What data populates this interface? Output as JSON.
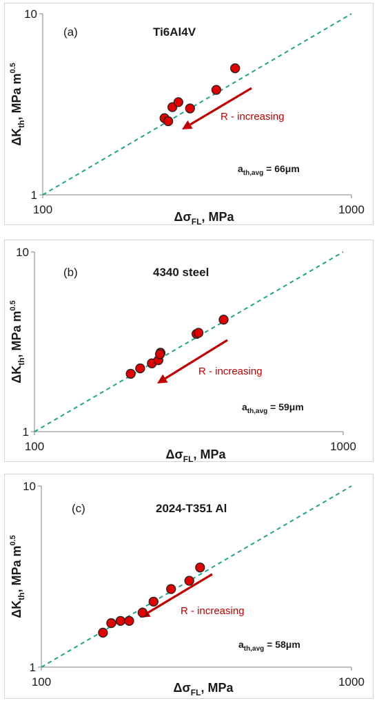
{
  "chart_data": [
    {
      "type": "scatter",
      "panel_label": "(a)",
      "title": "Ti6Al4V",
      "xlabel_main": "Δσ",
      "xlabel_sub": "FL",
      "xlabel_tail": ", MPa",
      "ylabel_main": "ΔK",
      "ylabel_sub": "th",
      "ylabel_tail": ", MPa m",
      "ylabel_sup": "0.5",
      "x_scale": "log",
      "y_scale": "log",
      "xlim": [
        100,
        1000
      ],
      "ylim": [
        1,
        10
      ],
      "x_ticks": [
        "100",
        "1000"
      ],
      "y_ticks": [
        "1",
        "10"
      ],
      "reference_line": "dashed 1:1 diagonal",
      "annotation": "R - increasing",
      "avg_main": "a",
      "avg_sub": "th,avg",
      "avg_tail": " = 66μm",
      "x": [
        248,
        255,
        263,
        275,
        300,
        365,
        420
      ],
      "y": [
        2.65,
        2.55,
        3.05,
        3.25,
        3.0,
        3.8,
        5.0
      ]
    },
    {
      "type": "scatter",
      "panel_label": "(b)",
      "title": "4340 steel",
      "xlabel_main": "Δσ",
      "xlabel_sub": "FL",
      "xlabel_tail": ", MPa",
      "ylabel_main": "ΔK",
      "ylabel_sub": "th",
      "ylabel_tail": ", MPa m",
      "ylabel_sup": "0.5",
      "x_scale": "log",
      "y_scale": "log",
      "xlim": [
        100,
        1000
      ],
      "ylim": [
        1,
        10
      ],
      "x_ticks": [
        "100",
        "1000"
      ],
      "y_ticks": [
        "1",
        "10"
      ],
      "reference_line": "dashed 1:1 diagonal",
      "annotation": "R - increasing",
      "avg_main": "a",
      "avg_sub": "th,avg",
      "avg_tail": " = 59μm",
      "x": [
        205,
        220,
        240,
        252,
        256,
        255,
        335,
        340,
        410
      ],
      "y": [
        2.1,
        2.25,
        2.4,
        2.5,
        2.75,
        2.7,
        3.5,
        3.55,
        4.2
      ]
    },
    {
      "type": "scatter",
      "panel_label": "(c)",
      "title": "2024-T351 Al",
      "xlabel_main": "Δσ",
      "xlabel_sub": "FL",
      "xlabel_tail": ", MPa",
      "ylabel_main": "ΔK",
      "ylabel_sub": "th",
      "ylabel_tail": ", MPa m",
      "ylabel_sup": "0.5",
      "x_scale": "log",
      "y_scale": "log",
      "xlim": [
        100,
        1000
      ],
      "ylim": [
        1,
        10
      ],
      "x_ticks": [
        "100",
        "1000"
      ],
      "y_ticks": [
        "1",
        "10"
      ],
      "reference_line": "dashed 1:1 diagonal",
      "annotation": "R - increasing",
      "avg_main": "a",
      "avg_sub": "th,avg",
      "avg_tail": " = 58μm",
      "x": [
        158,
        168,
        180,
        192,
        212,
        230,
        262,
        300,
        325
      ],
      "y": [
        1.55,
        1.75,
        1.8,
        1.8,
        2.0,
        2.3,
        2.7,
        3.0,
        3.55
      ]
    }
  ],
  "colors": {
    "marker_fill": "#e00000",
    "marker_edge": "#222222",
    "reference_line": "#1fa38a",
    "annotation": "#c00000"
  }
}
